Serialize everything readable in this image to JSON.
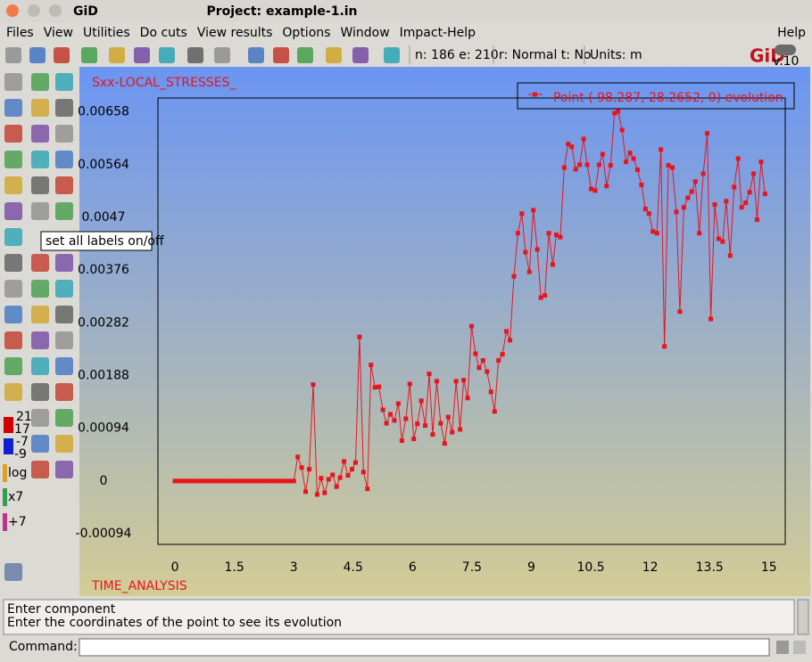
{
  "window": {
    "app_title": "GiD",
    "project": "Project: example-1.in"
  },
  "menu": [
    "Files",
    "View",
    "Utilities",
    "Do cuts",
    "View results",
    "Options",
    "Window",
    "Impact-Help"
  ],
  "menu_right": "Help",
  "status": [
    "n: 186 e: 210",
    "r: Normal t: No",
    "Units: m"
  ],
  "logo": "GiD",
  "logo_version": "v.10",
  "tooltip": "set all labels on/off",
  "side_labels": [
    "21",
    "17",
    "-7",
    "-9",
    "log",
    "x7",
    "+7"
  ],
  "messages": [
    "Enter component",
    "Enter the coordinates of the point to see its evolution"
  ],
  "command_label": "Command:",
  "chart_data": {
    "type": "line",
    "y_label": "Sxx-LOCAL_STRESSES_",
    "x_label": "TIME_ANALYSIS",
    "x": [
      0,
      0.1,
      0.2,
      0.3,
      0.4,
      0.5,
      0.6,
      0.7,
      0.8,
      0.9,
      1,
      1.1,
      1.2,
      1.3,
      1.4,
      1.5,
      1.6,
      1.7,
      1.8,
      1.9,
      2,
      2.1,
      2.2,
      2.3,
      2.4,
      2.5,
      2.6,
      2.7,
      2.8,
      2.9,
      3,
      3.1,
      3.2,
      3.3,
      3.39,
      3.49,
      3.59,
      3.69,
      3.78,
      3.88,
      3.98,
      4.08,
      4.17,
      4.27,
      4.37,
      4.47,
      4.56,
      4.66,
      4.76,
      4.86,
      4.95,
      5.05,
      5.15,
      5.25,
      5.34,
      5.44,
      5.54,
      5.64,
      5.73,
      5.83,
      5.93,
      6.03,
      6.12,
      6.22,
      6.32,
      6.42,
      6.51,
      6.61,
      6.71,
      6.81,
      6.9,
      7.0,
      7.1,
      7.2,
      7.29,
      7.39,
      7.49,
      7.59,
      7.68,
      7.78,
      7.88,
      7.98,
      8.07,
      8.17,
      8.27,
      8.37,
      8.46,
      8.56,
      8.66,
      8.76,
      8.85,
      8.95,
      9.05,
      9.15,
      9.24,
      9.34,
      9.44,
      9.54,
      9.63,
      9.73,
      9.83,
      9.93,
      10.02,
      10.12,
      10.22,
      10.32,
      10.41,
      10.51,
      10.61,
      10.71,
      10.8,
      10.9,
      11.0,
      11.1,
      11.19,
      11.29,
      11.39,
      11.49,
      11.58,
      11.68,
      11.78,
      11.88,
      11.97,
      12.07,
      12.17,
      12.27,
      12.36,
      12.46,
      12.56,
      12.66,
      12.75,
      12.85,
      12.95,
      13.05,
      13.14,
      13.24,
      13.34,
      13.44,
      13.53,
      13.63,
      13.73,
      13.83,
      13.92,
      14.02,
      14.12,
      14.22,
      14.31,
      14.41,
      14.51,
      14.61,
      14.7,
      14.8,
      14.9
    ],
    "series": [
      {
        "name": "Point ( 98.287, 28.2652, 0) evolution",
        "color": "#e8141e",
        "values": [
          0,
          0,
          0,
          0,
          0,
          0,
          0,
          0,
          0,
          0,
          0,
          0,
          0,
          0,
          0,
          0,
          0,
          0,
          0,
          0,
          0,
          0,
          0,
          0,
          0,
          0,
          0,
          0,
          0,
          0,
          0,
          0.00043,
          0.00024,
          -0.00019,
          0.00021,
          0.00172,
          -0.00024,
          5e-05,
          -0.00021,
          3e-05,
          0.00011,
          -0.0001,
          6e-05,
          0.00035,
          0.0001,
          0.00021,
          0.00033,
          0.00257,
          0.00016,
          -0.00014,
          0.00207,
          0.00167,
          0.00168,
          0.00127,
          0.00103,
          0.00119,
          0.00108,
          0.00138,
          0.00072,
          0.00111,
          0.00173,
          0.00075,
          0.00102,
          0.00143,
          0.00099,
          0.00191,
          0.00083,
          0.00178,
          0.00103,
          0.00067,
          0.00114,
          0.00087,
          0.00178,
          0.00092,
          0.0018,
          0.00148,
          0.00276,
          0.00227,
          0.00202,
          0.00215,
          0.00195,
          0.00159,
          0.00124,
          0.00215,
          0.00226,
          0.00267,
          0.00251,
          0.00365,
          0.00442,
          0.00477,
          0.00408,
          0.00373,
          0.00483,
          0.00413,
          0.00327,
          0.00331,
          0.00442,
          0.00386,
          0.00439,
          0.00435,
          0.00559,
          0.00601,
          0.00596,
          0.00556,
          0.00564,
          0.0061,
          0.00564,
          0.00521,
          0.00518,
          0.00564,
          0.00583,
          0.00526,
          0.00563,
          0.00656,
          0.00659,
          0.00626,
          0.00569,
          0.00585,
          0.00575,
          0.00555,
          0.00528,
          0.00485,
          0.00477,
          0.00445,
          0.00442,
          0.00591,
          0.0024,
          0.00563,
          0.00559,
          0.0048,
          0.00302,
          0.00488,
          0.00505,
          0.00516,
          0.00534,
          0.00442,
          0.00548,
          0.0062,
          0.00289,
          0.00493,
          0.00432,
          0.00427,
          0.00499,
          0.00402,
          0.00524,
          0.00575,
          0.00488,
          0.00496,
          0.00515,
          0.00548,
          0.00466,
          0.00569,
          0.00512
        ]
      }
    ],
    "xlim": [
      -0.43,
      15.41
    ],
    "xticks": [
      0,
      1.5,
      3,
      4.5,
      6,
      7.5,
      9,
      10.5,
      12,
      13.5,
      15
    ],
    "ylim": [
      -0.00113,
      0.00683
    ],
    "yticks": [
      -0.00094,
      0,
      0.00094,
      0.00188,
      0.00282,
      0.00376,
      0.0047,
      0.00564,
      0.00658
    ],
    "grid": false
  }
}
